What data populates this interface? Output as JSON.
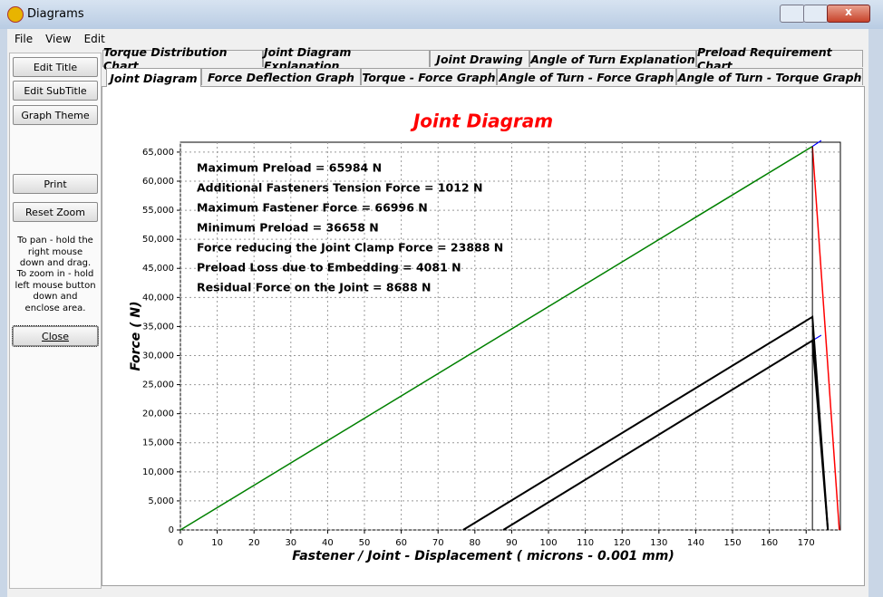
{
  "window": {
    "title": "Diagrams"
  },
  "menu": [
    "File",
    "View",
    "Edit"
  ],
  "toolbar": {
    "buttons": [
      "Edit Title",
      "Edit SubTitle",
      "Graph Theme"
    ],
    "print": "Print",
    "reset": "Reset Zoom",
    "help": [
      "To pan - hold the right mouse down and drag.",
      "To zoom in  - hold left mouse button down and enclose area."
    ],
    "close": "Close"
  },
  "tabs": {
    "row1": [
      "Torque Distribution Chart",
      "Joint Diagram Explanation",
      "Joint Drawing",
      "Angle of Turn Explanation",
      "Preload Requirement Chart"
    ],
    "row2": [
      "Joint Diagram",
      "Force Deflection Graph",
      "Torque - Force Graph",
      "Angle of Turn - Force Graph",
      "Angle of Turn - Torque Graph"
    ],
    "active": "Joint Diagram"
  },
  "chart_data": {
    "type": "line",
    "title": "Joint Diagram",
    "x_label": "Fastener / Joint - Displacement ( microns - 0.001 mm)",
    "y_label": "Force ( N)",
    "xlim": [
      0,
      179.3
    ],
    "ylim": [
      0,
      66700
    ],
    "xticks": [
      0,
      10,
      20,
      30,
      40,
      50,
      60,
      70,
      80,
      90,
      100,
      110,
      120,
      130,
      140,
      150,
      160,
      170
    ],
    "yticks": [
      0,
      {
        "value": 5000,
        "label": "5,000"
      },
      {
        "value": 10000,
        "label": "10,000"
      },
      {
        "value": 15000,
        "label": "15,000"
      },
      {
        "value": 20000,
        "label": "20,000"
      },
      {
        "value": 25000,
        "label": "25,000"
      },
      {
        "value": 30000,
        "label": "30,000"
      },
      {
        "value": 35000,
        "label": "35,000"
      },
      {
        "value": 40000,
        "label": "40,000"
      },
      {
        "value": 45000,
        "label": "45,000"
      },
      {
        "value": 50000,
        "label": "50,000"
      },
      {
        "value": 55000,
        "label": "55,000"
      },
      {
        "value": 60000,
        "label": "60,000"
      },
      {
        "value": 65000,
        "label": "65,000"
      }
    ],
    "grid": true,
    "series": [
      {
        "color": "#008000",
        "width": 1.5,
        "x": [
          0,
          171.7
        ],
        "values": [
          0,
          65984
        ]
      },
      {
        "color": "#ff0000",
        "width": 1.5,
        "x": [
          171.7,
          179
        ],
        "values": [
          65984,
          0
        ]
      },
      {
        "color": "#0000ff",
        "width": 1.2,
        "x": [
          171.7,
          174.1,
          null,
          171.7,
          174.1
        ],
        "values": [
          65984,
          66996,
          null,
          32577,
          33500
        ]
      },
      {
        "color": "#000000",
        "width": 1,
        "x": [
          171.7,
          171.7
        ],
        "values": [
          0,
          65984
        ]
      },
      {
        "color": "#000000",
        "width": 2,
        "x": [
          76.8,
          171.7,
          175.9
        ],
        "values": [
          0,
          36658,
          0
        ]
      },
      {
        "color": "#000000",
        "width": 2,
        "x": [
          87.7,
          171.7,
          175.9
        ],
        "values": [
          0,
          32577,
          0
        ]
      }
    ],
    "annotations": [
      "Maximum Preload = 65984 N",
      "Additional Fasteners Tension Force = 1012 N",
      "Maximum Fastener Force = 66996 N",
      "Minimum Preload = 36658 N",
      "Force reducing the Joint Clamp Force = 23888 N",
      "Preload Loss due to Embedding = 4081 N",
      "Residual Force on the Joint = 8688 N"
    ]
  }
}
